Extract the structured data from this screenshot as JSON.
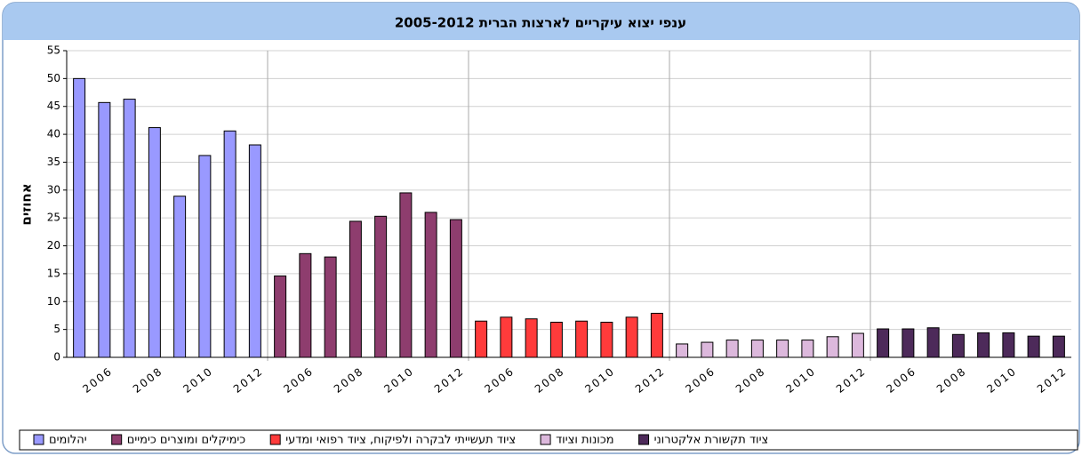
{
  "chart_data": {
    "type": "bar",
    "title": "ענפי יצוא עיקריים לארצות הברית 2005-2012",
    "y_label": "אחוזים",
    "categories": [
      null,
      "2006",
      null,
      "2008",
      null,
      "2010",
      null,
      "2012"
    ],
    "series": [
      {
        "name": "יהלומים",
        "color": "#9999ff",
        "values": [
          50,
          45.7,
          46.3,
          41.2,
          28.9,
          36.2,
          40.6,
          38.1
        ]
      },
      {
        "name": "כימיקלים ומוצרים כימיים",
        "color": "#8e3d6e",
        "values": [
          14.6,
          18.6,
          18.0,
          24.4,
          25.3,
          29.5,
          26.0,
          24.7
        ]
      },
      {
        "name": "ציוד תעשייתי לבקרה ולפיקוח, ציוד רפואי ומדעי",
        "color": "#ff3b3b",
        "values": [
          6.5,
          7.2,
          6.9,
          6.3,
          6.5,
          6.3,
          7.2,
          7.9
        ]
      },
      {
        "name": "מכונות וציוד",
        "color": "#dcb8dc",
        "values": [
          2.4,
          2.7,
          3.1,
          3.1,
          3.1,
          3.1,
          3.7,
          4.3
        ]
      },
      {
        "name": "ציוד תקשורת אלקטרוני",
        "color": "#4d2a5a",
        "values": [
          5.1,
          5.1,
          5.3,
          4.1,
          4.4,
          4.4,
          3.8,
          3.8
        ]
      }
    ],
    "ylim": [
      0,
      55
    ],
    "yticks": [
      0,
      5,
      10,
      15,
      20,
      25,
      30,
      35,
      40,
      45,
      50,
      55
    ],
    "grid": true
  }
}
